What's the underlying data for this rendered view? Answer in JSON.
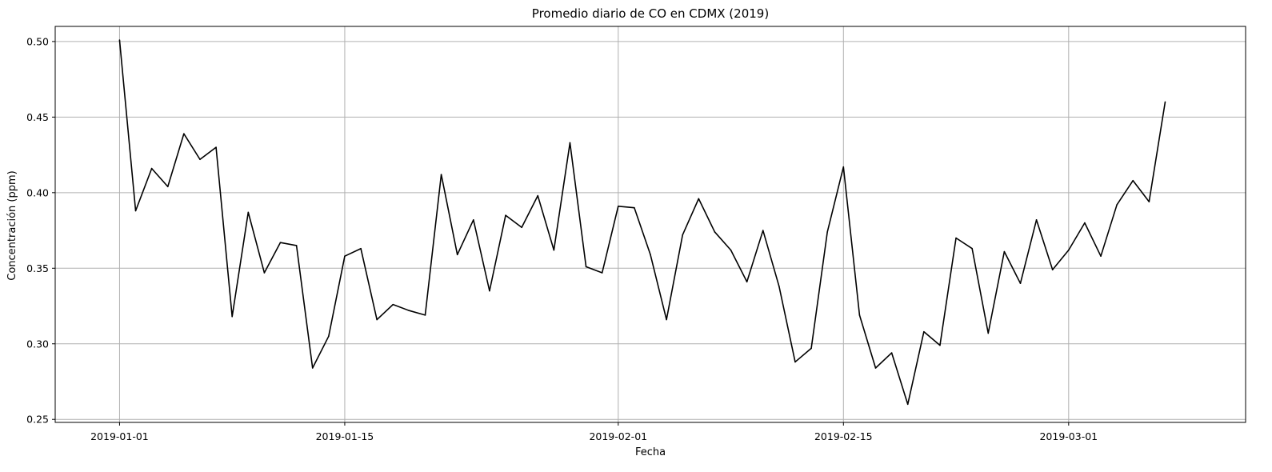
{
  "chart_data": {
    "type": "line",
    "title": "Promedio diario de CO en CDMX (2019)",
    "xlabel": "Fecha",
    "ylabel": "Concentración (ppm)",
    "x_start": "2019-01-01",
    "xlim": [
      "2018-12-28",
      "2019-03-12"
    ],
    "ylim": [
      0.248,
      0.51
    ],
    "grid": true,
    "line_color": "#000000",
    "grid_color": "#b0b0b0",
    "x_ticks": [
      "2019-01-01",
      "2019-01-15",
      "2019-02-01",
      "2019-02-15",
      "2019-03-01"
    ],
    "y_ticks": [
      0.25,
      0.3,
      0.35,
      0.4,
      0.45,
      0.5
    ],
    "y_tick_labels": [
      "0.25",
      "0.30",
      "0.35",
      "0.40",
      "0.45",
      "0.50"
    ],
    "series": [
      {
        "values": [
          0.501,
          0.388,
          0.416,
          0.404,
          0.439,
          0.422,
          0.43,
          0.318,
          0.387,
          0.347,
          0.367,
          0.365,
          0.284,
          0.305,
          0.358,
          0.363,
          0.316,
          0.326,
          0.322,
          0.319,
          0.412,
          0.359,
          0.382,
          0.335,
          0.385,
          0.377,
          0.398,
          0.362,
          0.433,
          0.351,
          0.347,
          0.391,
          0.39,
          0.359,
          0.316,
          0.372,
          0.396,
          0.374,
          0.362,
          0.341,
          0.375,
          0.338,
          0.288,
          0.297,
          0.374,
          0.417,
          0.319,
          0.284,
          0.294,
          0.26,
          0.308,
          0.299,
          0.37,
          0.363,
          0.307,
          0.361,
          0.34,
          0.382,
          0.349,
          0.362,
          0.38,
          0.358,
          0.392,
          0.408,
          0.394,
          0.46
        ]
      }
    ]
  }
}
